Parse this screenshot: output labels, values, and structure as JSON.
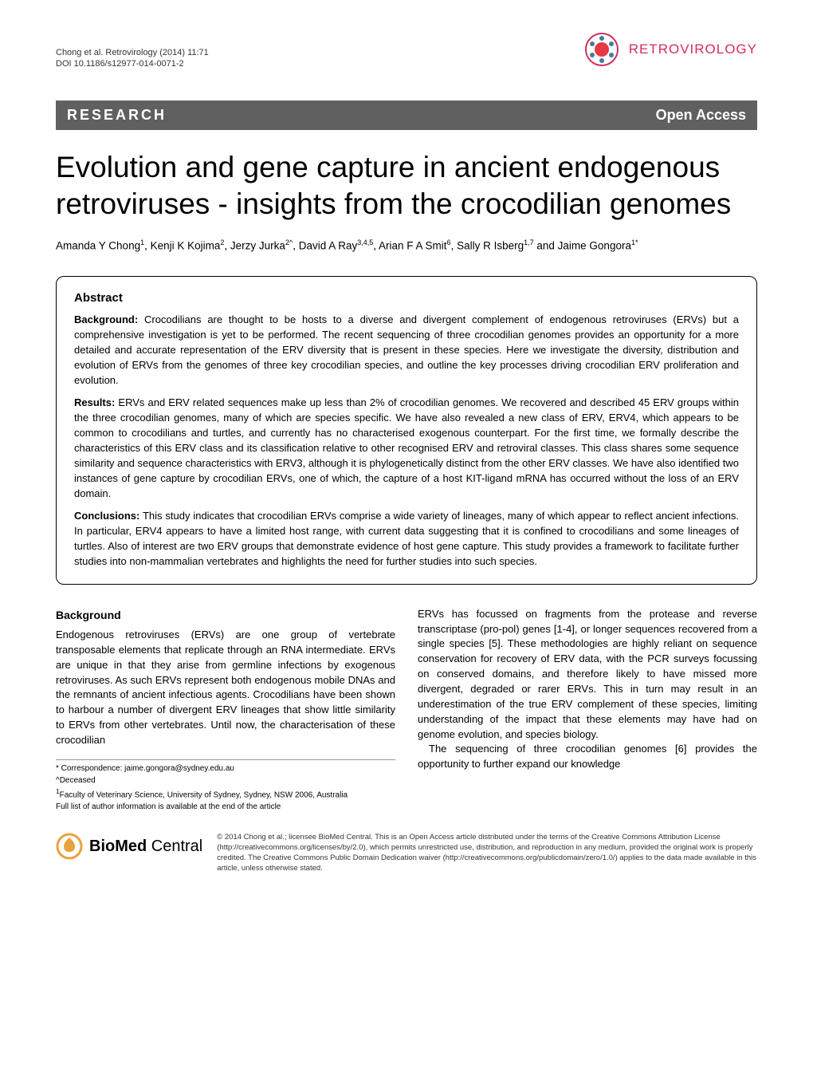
{
  "header": {
    "citation": "Chong et al. Retrovirology  (2014) 11:71",
    "doi": "DOI 10.1186/s12977-014-0071-2",
    "journal_name": "RETROVIROLOGY"
  },
  "bar": {
    "left": "RESEARCH",
    "right": "Open Access"
  },
  "title": "Evolution and gene capture in ancient endogenous retroviruses - insights from the crocodilian genomes",
  "authors_html": "Amanda Y Chong<sup>1</sup>, Kenji K Kojima<sup>2</sup>, Jerzy Jurka<sup>2^</sup>, David A Ray<sup>3,4,5</sup>, Arian F A Smit<sup>6</sup>, Sally R Isberg<sup>1,7</sup> and Jaime Gongora<sup>1*</sup>",
  "abstract": {
    "heading": "Abstract",
    "background_label": "Background:",
    "background_text": " Crocodilians are thought to be hosts to a diverse and divergent complement of endogenous retroviruses (ERVs) but a comprehensive investigation is yet to be performed. The recent sequencing of three crocodilian genomes provides an opportunity for a more detailed and accurate representation of the ERV diversity that is present in these species. Here we investigate the diversity, distribution and evolution of ERVs from the genomes of three key crocodilian species, and outline the key processes driving crocodilian ERV proliferation and evolution.",
    "results_label": "Results:",
    "results_text": " ERVs and ERV related sequences make up less than 2% of crocodilian genomes. We recovered and described 45 ERV groups within the three crocodilian genomes, many of which are species specific. We have also revealed a new class of ERV, ERV4, which appears to be common to crocodilians and turtles, and currently has no characterised exogenous counterpart. For the first time, we formally describe the characteristics of this ERV class and its classification relative to other recognised ERV and retroviral classes. This class shares some sequence similarity and sequence characteristics with ERV3, although it is phylogenetically distinct from the other ERV classes. We have also identified two instances of gene capture by crocodilian ERVs, one of which, the capture of a host KIT-ligand mRNA has occurred without the loss of an ERV domain.",
    "conclusions_label": "Conclusions:",
    "conclusions_text": " This study indicates that crocodilian ERVs comprise a wide variety of lineages, many of which appear to reflect ancient infections. In particular, ERV4 appears to have a limited host range, with current data suggesting that it is confined to crocodilians and some lineages of turtles. Also of interest are two ERV groups that demonstrate evidence of host gene capture. This study provides a framework to facilitate further studies into non-mammalian vertebrates and highlights the need for further studies into such species."
  },
  "body": {
    "background_heading": "Background",
    "col1_p1": "Endogenous retroviruses (ERVs) are one group of vertebrate transposable elements that replicate through an RNA intermediate. ERVs are unique in that they arise from germline infections by exogenous retroviruses. As such ERVs represent both endogenous mobile DNAs and the remnants of ancient infectious agents. Crocodilians have been shown to harbour a number of divergent ERV lineages that show little similarity to ERVs from other vertebrates. Until now, the characterisation of these crocodilian",
    "col2_p1": "ERVs has focussed on fragments from the protease and reverse transcriptase (pro-pol) genes [1-4], or longer sequences recovered from a single species [5]. These methodologies are highly reliant on sequence conservation for recovery of ERV data, with the PCR surveys focussing on conserved domains, and therefore likely to have missed more divergent, degraded or rarer ERVs. This in turn may result in an underestimation of the true ERV complement of these species, limiting understanding of the impact that these elements may have had on genome evolution, and species biology.",
    "col2_p2": "The sequencing of three crocodilian genomes [6] provides the opportunity to further expand our knowledge"
  },
  "footnotes": {
    "correspondence": "* Correspondence: jaime.gongora@sydney.edu.au",
    "deceased": "^Deceased",
    "affiliation": "1Faculty of Veterinary Science, University of Sydney, Sydney, NSW 2006, Australia",
    "full_list": "Full list of author information is available at the end of the article"
  },
  "footer": {
    "bmc_bold": "BioMed",
    "bmc_light": " Central",
    "license": "© 2014 Chong et al.; licensee BioMed Central. This is an Open Access article distributed under the terms of the Creative Commons Attribution License (http://creativecommons.org/licenses/by/2.0), which permits unrestricted use, distribution, and reproduction in any medium, provided the original work is properly credited. The Creative Commons Public Domain Dedication waiver (http://creativecommons.org/publicdomain/zero/1.0/) applies to the data made available in this article, unless otherwise stated."
  },
  "colors": {
    "journal_pink": "#d42e5b",
    "bar_gray": "#606060",
    "logo_red": "#e63946",
    "logo_blue": "#457b9d"
  }
}
